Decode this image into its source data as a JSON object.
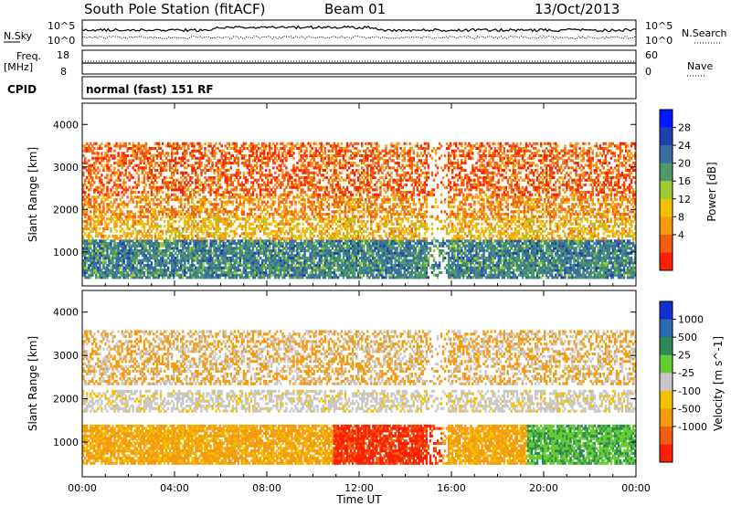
{
  "header": {
    "station": "South Pole Station (fitACF)",
    "beam": "Beam 01",
    "date": "13/Oct/2013"
  },
  "nsky_panel": {
    "left_label_top": "N.Sky",
    "left_label_bottom": "",
    "right_label": "N.Search",
    "tick_top": "10^5",
    "tick_bottom": "10^0"
  },
  "freq_panel": {
    "left_label_line1": "Freq.",
    "left_label_line2": "[MHz]",
    "tick_top_left": "18",
    "tick_bottom_left": "8",
    "tick_top_right": "60",
    "tick_bottom_right": "0",
    "right_label": "Nave"
  },
  "cpid_panel": {
    "label": "CPID",
    "text": "normal (fast) 151 RF"
  },
  "chart_data": [
    {
      "type": "heatmap",
      "panel": "power",
      "ylabel": "Slant Range [km]",
      "ylim": [
        200,
        4500
      ],
      "yticks": [
        1000,
        2000,
        3000,
        4000
      ],
      "colorbar_label": "Power [dB]",
      "colorbar_ticks": [
        "4",
        "8",
        "12",
        "16",
        "20",
        "24",
        "28"
      ],
      "colorbar_colors": [
        "#0018ff",
        "#2040b0",
        "#3b6ea0",
        "#4a9a6a",
        "#9acd32",
        "#f2c200",
        "#f39c12",
        "#f06010",
        "#ff2000"
      ],
      "bands": [
        {
          "range_km": [
            400,
            1300
          ],
          "value_db": 22
        },
        {
          "range_km": [
            1300,
            1800
          ],
          "value_db": 10
        },
        {
          "range_km": [
            1800,
            2300
          ],
          "value_db": 7
        },
        {
          "range_km": [
            2300,
            3600
          ],
          "value_db": 4
        }
      ]
    },
    {
      "type": "heatmap",
      "panel": "velocity",
      "ylabel": "Slant Range [km]",
      "ylim": [
        200,
        4500
      ],
      "yticks": [
        1000,
        2000,
        3000,
        4000
      ],
      "colorbar_label": "Velocity [m s^-1]",
      "colorbar_ticks": [
        "1000",
        "500",
        "25",
        "-25",
        "-100",
        "-500",
        "-1000"
      ],
      "colorbar_colors": [
        "#1030d0",
        "#2a6ab0",
        "#2e8b57",
        "#66cc33",
        "#c8c8c8",
        "#f2c200",
        "#f39c12",
        "#f06010",
        "#ff2000"
      ],
      "bands": [
        {
          "range_km": [
            500,
            1400
          ],
          "value_ms": -300
        },
        {
          "range_km": [
            1700,
            2200
          ],
          "value_ms": 0
        },
        {
          "range_km": [
            2300,
            3600
          ],
          "value_ms": -200
        }
      ]
    }
  ],
  "x_axis": {
    "ticks": [
      "00:00",
      "04:00",
      "08:00",
      "12:00",
      "16:00",
      "20:00",
      "00:00"
    ],
    "label": "Time UT"
  }
}
